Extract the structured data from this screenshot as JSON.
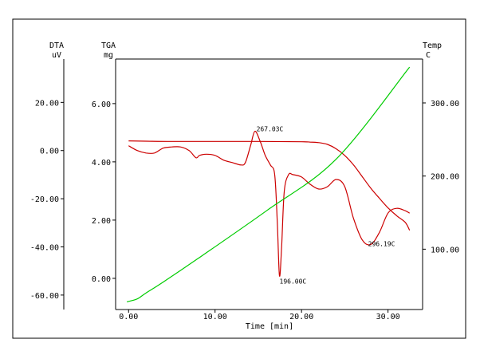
{
  "chart_data": {
    "type": "line",
    "colors": {
      "tga": "#cc0000",
      "dta": "#cc0000",
      "temp": "#00cc00"
    },
    "axes": {
      "x": {
        "title": "Time [min]",
        "range": [
          -1.5,
          34
        ],
        "ticks": [
          0,
          10,
          20,
          30
        ],
        "tick_labels": [
          "0.00",
          "10.00",
          "20.00",
          "30.00"
        ]
      },
      "dta": {
        "title": "DTA",
        "unit": "uV",
        "range": [
          -66,
          38
        ],
        "ticks": [
          -60,
          -40,
          -20,
          0,
          20
        ],
        "tick_labels": [
          "-60.00",
          "-40.00",
          "-20.00",
          "0.00",
          "20.00"
        ]
      },
      "tga": {
        "title": "TGA",
        "unit": "mg",
        "range": [
          -1.07,
          7.53
        ],
        "ticks": [
          0,
          2,
          4,
          6
        ],
        "tick_labels": [
          "0.00",
          "2.00",
          "4.00",
          "6.00"
        ]
      },
      "temp": {
        "title": "Temp",
        "unit": "C",
        "range": [
          17.5,
          360
        ],
        "ticks": [
          100,
          200,
          300
        ],
        "tick_labels": [
          "100.00",
          "200.00",
          "300.00"
        ]
      }
    },
    "series": [
      {
        "axis": "tga",
        "x": [
          0,
          2,
          5,
          10,
          15,
          20,
          21,
          22,
          23,
          24,
          25,
          26,
          27,
          28,
          29,
          30,
          31,
          32,
          32.5
        ],
        "y": [
          4.72,
          4.71,
          4.7,
          4.7,
          4.7,
          4.69,
          4.68,
          4.66,
          4.6,
          4.45,
          4.22,
          3.9,
          3.5,
          3.1,
          2.75,
          2.42,
          2.15,
          1.92,
          1.65
        ]
      },
      {
        "axis": "dta",
        "x": [
          0,
          1,
          2,
          3,
          4,
          5,
          6,
          7,
          7.8,
          8.2,
          9,
          10,
          11,
          12,
          13,
          13.5,
          14.1,
          14.6,
          15.2,
          15.8,
          16.4,
          16.9,
          17.2,
          17.45,
          17.7,
          18,
          18.5,
          19,
          20,
          21,
          22,
          23,
          24,
          25,
          26,
          27,
          28,
          29,
          30,
          31,
          32,
          32.5
        ],
        "y": [
          2,
          0,
          -1,
          -1,
          1,
          1.5,
          1.5,
          0,
          -3,
          -2,
          -1.5,
          -2,
          -4,
          -5,
          -6,
          -5,
          2,
          8,
          4,
          -2,
          -6,
          -10,
          -30,
          -52,
          -40,
          -17,
          -10,
          -10,
          -11,
          -14,
          -16,
          -15,
          -12,
          -15,
          -28,
          -37,
          -39,
          -34,
          -26,
          -24,
          -25,
          -26
        ]
      },
      {
        "axis": "temp",
        "x": [
          -0.2,
          1,
          2,
          4,
          8,
          16,
          24,
          32.5
        ],
        "y": [
          28,
          32,
          40,
          55,
          87,
          153,
          223,
          349
        ]
      }
    ],
    "annotations": [
      {
        "text": "267.03C",
        "axis": "dta",
        "x": 14.6,
        "y": 8
      },
      {
        "text": "196.00C",
        "axis": "dta",
        "x": 17.45,
        "y": -52
      },
      {
        "text": "296.19C",
        "axis": "dta",
        "x": 27.7,
        "y": -38
      }
    ]
  }
}
